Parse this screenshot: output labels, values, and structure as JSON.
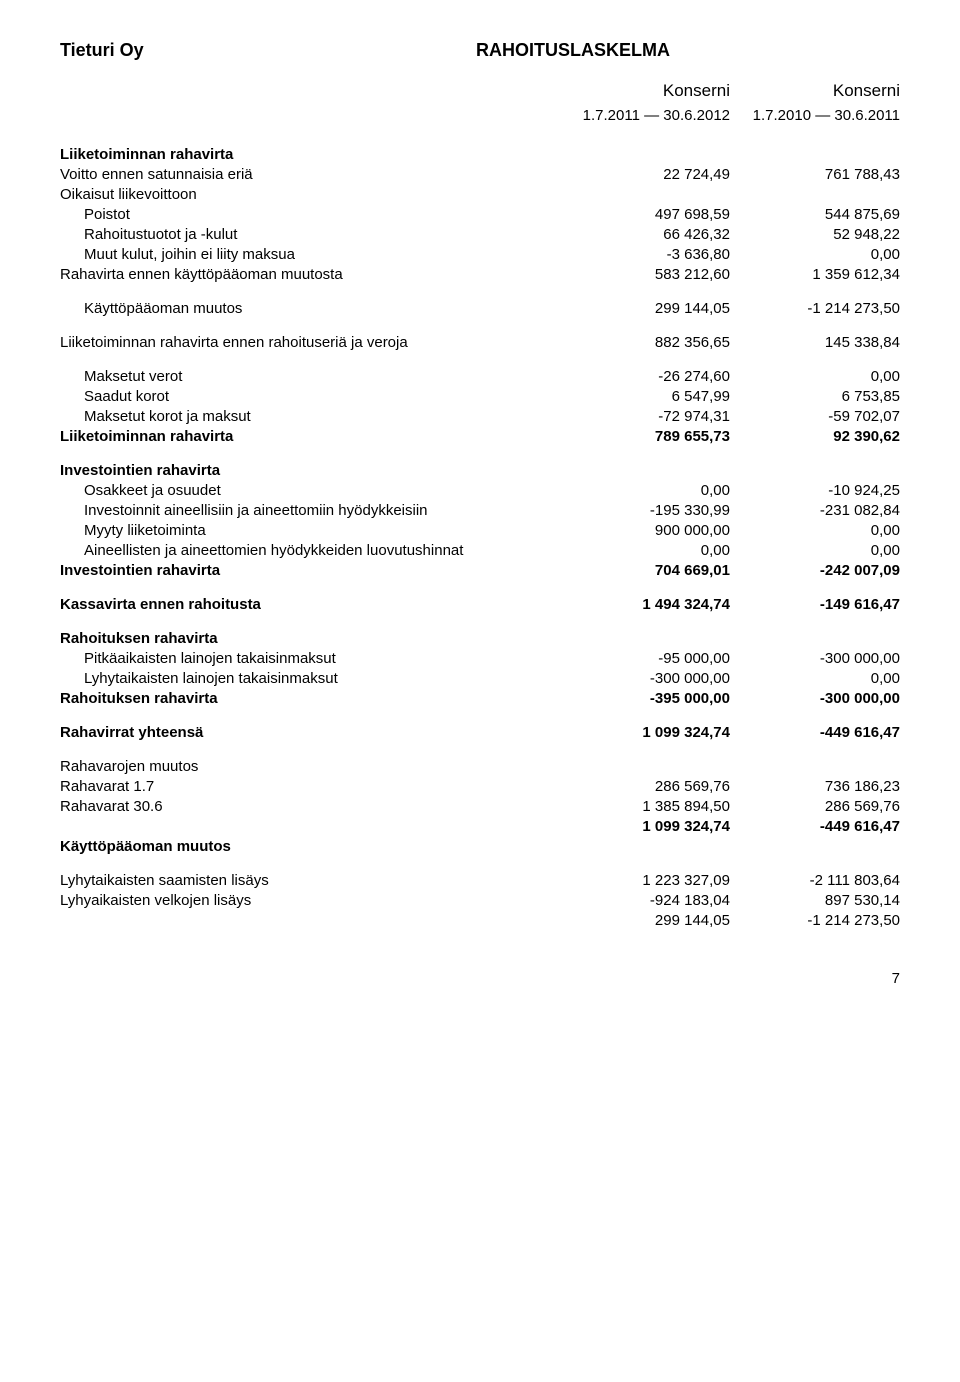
{
  "header": {
    "company": "Tieturi Oy",
    "title": "RAHOITUSLASKELMA"
  },
  "columnHeaders": {
    "col1": "Konserni",
    "col2": "Konserni"
  },
  "periods": {
    "p1": "1.7.2011 — 30.6.2012",
    "p2": "1.7.2010 — 30.6.2011"
  },
  "rows": [
    {
      "type": "bold",
      "label": "Liiketoiminnan rahavirta",
      "v1": "",
      "v2": ""
    },
    {
      "label": "Voitto ennen satunnaisia eriä",
      "v1": "22 724,49",
      "v2": "761 788,43"
    },
    {
      "label": "Oikaisut liikevoittoon",
      "v1": "",
      "v2": ""
    },
    {
      "indent": 1,
      "label": "Poistot",
      "v1": "497 698,59",
      "v2": "544 875,69"
    },
    {
      "indent": 1,
      "label": "Rahoitustuotot ja -kulut",
      "v1": "66 426,32",
      "v2": "52 948,22"
    },
    {
      "indent": 1,
      "label": "Muut kulut, joihin ei liity maksua",
      "v1": "-3 636,80",
      "v2": "0,00"
    },
    {
      "label": "Rahavirta ennen käyttöpääoman muutosta",
      "v1": "583 212,60",
      "v2": "1 359 612,34"
    },
    {
      "type": "spacer"
    },
    {
      "indent": 1,
      "label": "Käyttöpääoman muutos",
      "v1": "299 144,05",
      "v2": "-1 214 273,50"
    },
    {
      "type": "spacer"
    },
    {
      "label": "Liiketoiminnan rahavirta ennen rahoituseriä ja veroja",
      "v1": "882 356,65",
      "v2": "145 338,84"
    },
    {
      "type": "spacer"
    },
    {
      "indent": 1,
      "label": "Maksetut verot",
      "v1": "-26 274,60",
      "v2": "0,00"
    },
    {
      "indent": 1,
      "label": "Saadut korot",
      "v1": "6 547,99",
      "v2": "6 753,85"
    },
    {
      "indent": 1,
      "label": "Maksetut korot ja maksut",
      "v1": "-72 974,31",
      "v2": "-59 702,07"
    },
    {
      "type": "bold",
      "label": "Liiketoiminnan rahavirta",
      "v1": "789 655,73",
      "v2": "92 390,62"
    },
    {
      "type": "spacer"
    },
    {
      "type": "bold",
      "label": "Investointien rahavirta",
      "v1": "",
      "v2": ""
    },
    {
      "indent": 1,
      "label": "Osakkeet ja osuudet",
      "v1": "0,00",
      "v2": "-10 924,25"
    },
    {
      "indent": 1,
      "label": "Investoinnit aineellisiin ja aineettomiin hyödykkeisiin",
      "v1": "-195 330,99",
      "v2": "-231 082,84"
    },
    {
      "indent": 1,
      "label": "Myyty liiketoiminta",
      "v1": "900 000,00",
      "v2": "0,00"
    },
    {
      "indent": 1,
      "label": "Aineellisten ja aineettomien hyödykkeiden luovutushinnat",
      "v1": "0,00",
      "v2": "0,00"
    },
    {
      "type": "bold",
      "label": "Investointien rahavirta",
      "v1": "704 669,01",
      "v2": "-242 007,09"
    },
    {
      "type": "spacer"
    },
    {
      "type": "bold",
      "label": "Kassavirta ennen rahoitusta",
      "v1": "1 494 324,74",
      "v2": "-149 616,47"
    },
    {
      "type": "spacer"
    },
    {
      "type": "bold",
      "label": "Rahoituksen rahavirta",
      "v1": "",
      "v2": ""
    },
    {
      "indent": 1,
      "label": "Pitkäaikaisten lainojen takaisinmaksut",
      "v1": "-95 000,00",
      "v2": "-300 000,00"
    },
    {
      "indent": 1,
      "label": "Lyhytaikaisten lainojen takaisinmaksut",
      "v1": "-300 000,00",
      "v2": "0,00"
    },
    {
      "type": "bold",
      "label": "Rahoituksen rahavirta",
      "v1": "-395 000,00",
      "v2": "-300 000,00"
    },
    {
      "type": "spacer"
    },
    {
      "type": "bold",
      "label": "Rahavirrat yhteensä",
      "v1": "1 099 324,74",
      "v2": "-449 616,47"
    },
    {
      "type": "spacer"
    },
    {
      "label": "Rahavarojen muutos",
      "v1": "",
      "v2": ""
    },
    {
      "label": "Rahavarat 1.7",
      "v1": "286 569,76",
      "v2": "736 186,23"
    },
    {
      "label": "Rahavarat 30.6",
      "v1": "1 385 894,50",
      "v2": "286 569,76"
    },
    {
      "type": "bold",
      "label": "",
      "v1": "1 099 324,74",
      "v2": "-449 616,47"
    },
    {
      "type": "bold",
      "label": "Käyttöpääoman muutos",
      "v1": "",
      "v2": ""
    },
    {
      "type": "spacer"
    },
    {
      "label": "Lyhytaikaisten saamisten lisäys",
      "v1": "1 223 327,09",
      "v2": "-2 111 803,64"
    },
    {
      "label": "Lyhyaikaisten velkojen lisäys",
      "v1": "-924 183,04",
      "v2": "897 530,14"
    },
    {
      "label": "",
      "v1": "299 144,05",
      "v2": "-1 214 273,50"
    }
  ],
  "pageNumber": "7",
  "style": {
    "background": "#ffffff",
    "text": "#000000",
    "bodyFontSize": 15,
    "headerFontSize": 18,
    "colHeaderFontSize": 17,
    "pageWidth": 960
  }
}
